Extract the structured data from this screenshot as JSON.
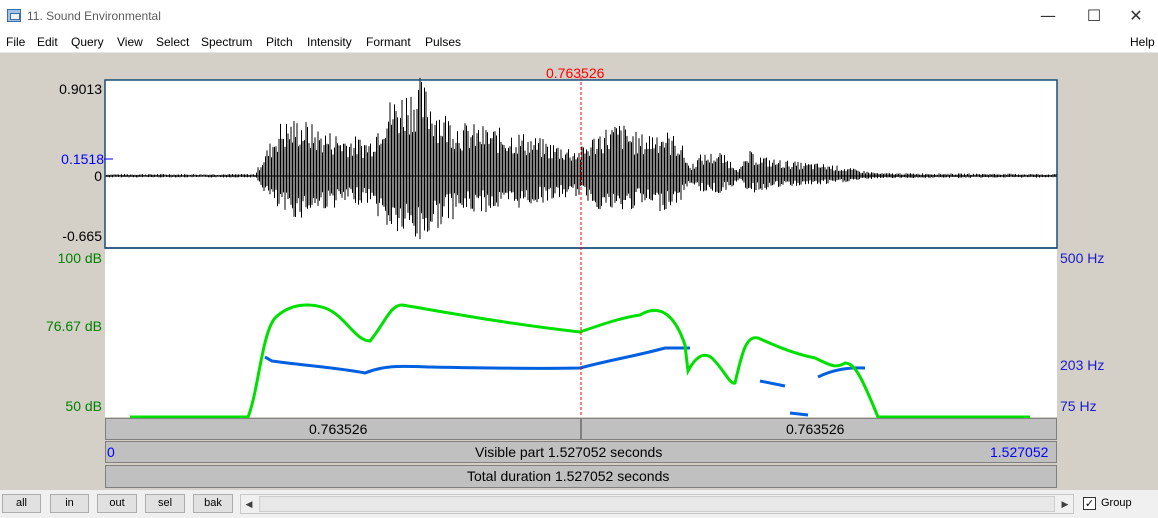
{
  "window": {
    "title": "11. Sound Environmental",
    "minimize": "—",
    "maximize": "☐",
    "close": "✕"
  },
  "menu": [
    "File",
    "Edit",
    "Query",
    "View",
    "Select",
    "Spectrum",
    "Pitch",
    "Intensity",
    "Formant",
    "Pulses",
    "Help"
  ],
  "cursor": {
    "time": "0.763526",
    "color": "#ff0000"
  },
  "waveform": {
    "max": "0.9013",
    "cursor_value": "0.1518",
    "zero": "0",
    "min": "-0.665"
  },
  "intensity": {
    "color": "#00e000",
    "top": "100 dB",
    "mid": "76.67 dB",
    "bottom": "50 dB"
  },
  "pitch": {
    "color": "#0060e0",
    "top": "500 Hz",
    "mid": "203 Hz",
    "bottom": "75 Hz"
  },
  "bars": {
    "left_part": "0.763526",
    "right_part": "0.763526",
    "visible_start": "0",
    "visible_text": "Visible part 1.527052 seconds",
    "visible_end": "1.527052",
    "total_text": "Total duration 1.527052 seconds"
  },
  "buttons": [
    "all",
    "in",
    "out",
    "sel",
    "bak"
  ],
  "scroll_left": "◀",
  "scroll_right": "▶",
  "group": {
    "label": "Group",
    "checked": true,
    "mark": "✓"
  }
}
